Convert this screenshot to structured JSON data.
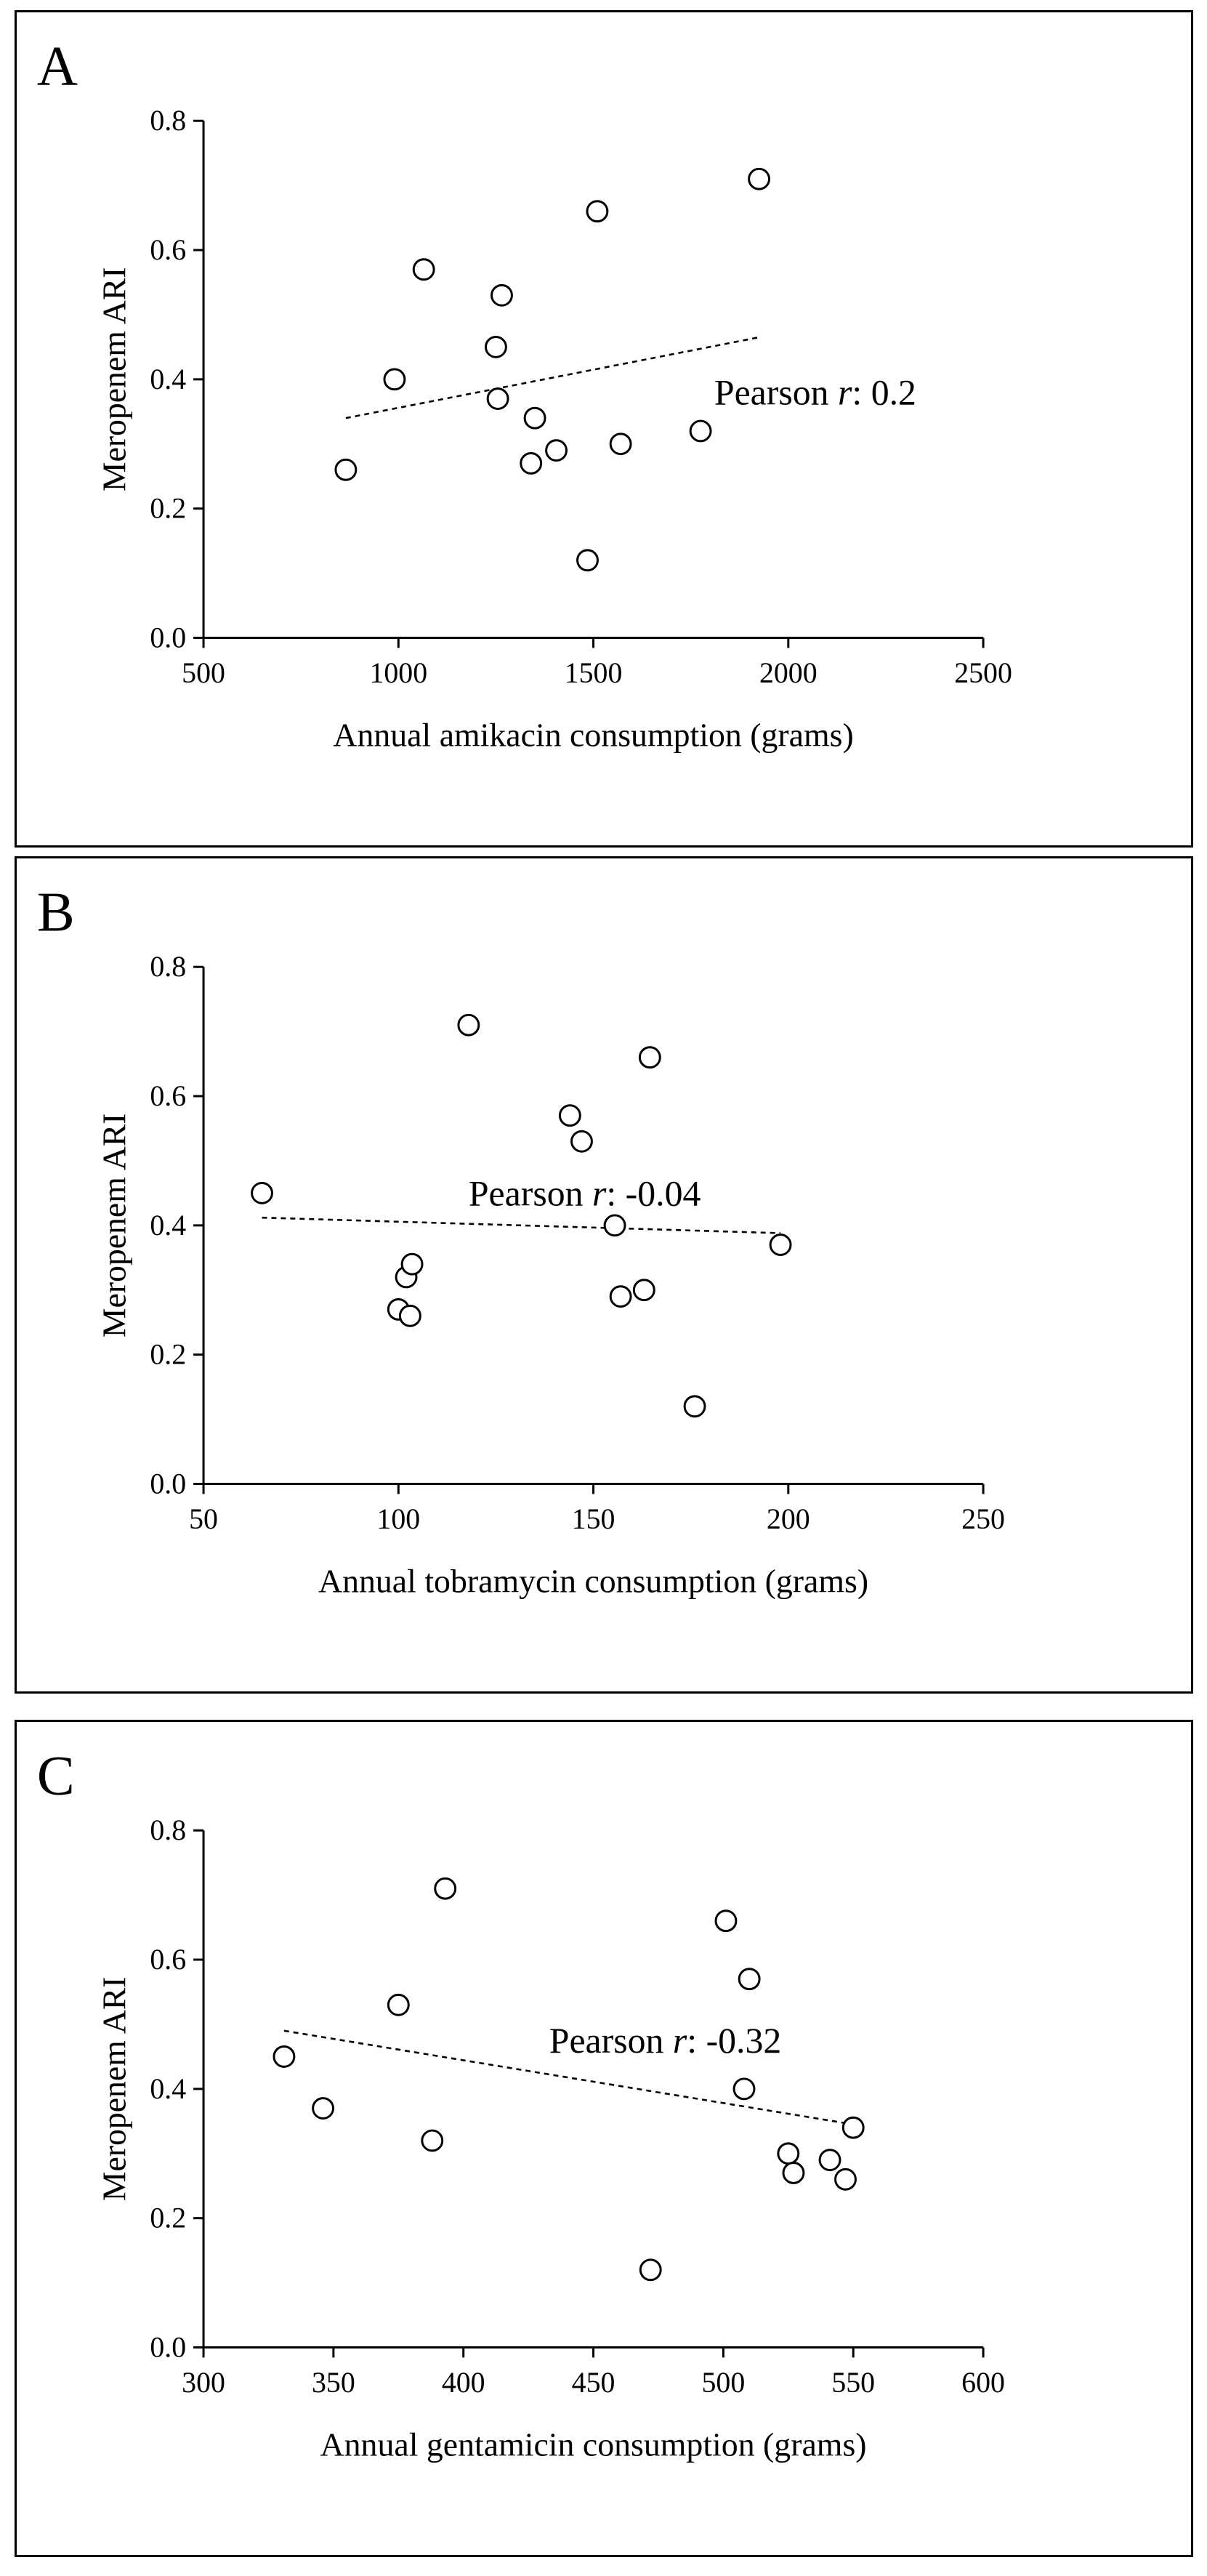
{
  "chart_data": [
    {
      "type": "scatter",
      "panel_label": "A",
      "title": "",
      "xlabel": "Annual amikacin consumption (grams)",
      "ylabel": "Meropenem ARI",
      "xlim": [
        500,
        2500
      ],
      "ylim": [
        0.0,
        0.8
      ],
      "xticks": [
        "500",
        "1000",
        "1500",
        "2000",
        "2500"
      ],
      "yticks": [
        "0.0",
        "0.2",
        "0.4",
        "0.6",
        "0.8"
      ],
      "points": [
        {
          "x": 865,
          "y": 0.26
        },
        {
          "x": 990,
          "y": 0.4
        },
        {
          "x": 1065,
          "y": 0.57
        },
        {
          "x": 1250,
          "y": 0.45
        },
        {
          "x": 1255,
          "y": 0.37
        },
        {
          "x": 1265,
          "y": 0.53
        },
        {
          "x": 1340,
          "y": 0.27
        },
        {
          "x": 1350,
          "y": 0.34
        },
        {
          "x": 1405,
          "y": 0.29
        },
        {
          "x": 1485,
          "y": 0.12
        },
        {
          "x": 1510,
          "y": 0.66
        },
        {
          "x": 1570,
          "y": 0.3
        },
        {
          "x": 1775,
          "y": 0.32
        },
        {
          "x": 1925,
          "y": 0.71
        }
      ],
      "trendline": {
        "x": [
          865,
          1925
        ],
        "y": [
          0.34,
          0.465
        ]
      },
      "annotation": {
        "prefix": "Pearson ",
        "italic": "r",
        "suffix": ": 0.2",
        "x": 1810,
        "y": 0.38
      }
    },
    {
      "type": "scatter",
      "panel_label": "B",
      "title": "",
      "xlabel": "Annual tobramycin consumption (grams)",
      "ylabel": "Meropenem ARI",
      "xlim": [
        50,
        250
      ],
      "ylim": [
        0.0,
        0.8
      ],
      "xticks": [
        "50",
        "100",
        "150",
        "200",
        "250"
      ],
      "yticks": [
        "0.0",
        "0.2",
        "0.4",
        "0.6",
        "0.8"
      ],
      "points": [
        {
          "x": 65,
          "y": 0.45
        },
        {
          "x": 100,
          "y": 0.27
        },
        {
          "x": 102,
          "y": 0.32
        },
        {
          "x": 103,
          "y": 0.26
        },
        {
          "x": 103.5,
          "y": 0.34
        },
        {
          "x": 118,
          "y": 0.71
        },
        {
          "x": 144,
          "y": 0.57
        },
        {
          "x": 147,
          "y": 0.53
        },
        {
          "x": 155.5,
          "y": 0.4
        },
        {
          "x": 157,
          "y": 0.29
        },
        {
          "x": 163,
          "y": 0.3
        },
        {
          "x": 164.5,
          "y": 0.66
        },
        {
          "x": 176,
          "y": 0.12
        },
        {
          "x": 198,
          "y": 0.37
        }
      ],
      "trendline": {
        "x": [
          65,
          198
        ],
        "y": [
          0.412,
          0.388
        ]
      },
      "annotation": {
        "prefix": "Pearson ",
        "italic": "r",
        "suffix": ": -0.04",
        "x": 118,
        "y": 0.45
      }
    },
    {
      "type": "scatter",
      "panel_label": "C",
      "title": "",
      "xlabel": "Annual gentamicin consumption (grams)",
      "ylabel": "Meropenem ARI",
      "xlim": [
        300,
        600
      ],
      "ylim": [
        0.0,
        0.8
      ],
      "xticks": [
        "300",
        "350",
        "400",
        "450",
        "500",
        "550",
        "600"
      ],
      "yticks": [
        "0.0",
        "0.2",
        "0.4",
        "0.6",
        "0.8"
      ],
      "points": [
        {
          "x": 331,
          "y": 0.45
        },
        {
          "x": 346,
          "y": 0.37
        },
        {
          "x": 375,
          "y": 0.53
        },
        {
          "x": 388,
          "y": 0.32
        },
        {
          "x": 393,
          "y": 0.71
        },
        {
          "x": 472,
          "y": 0.12
        },
        {
          "x": 501,
          "y": 0.66
        },
        {
          "x": 508,
          "y": 0.4
        },
        {
          "x": 510,
          "y": 0.57
        },
        {
          "x": 525,
          "y": 0.3
        },
        {
          "x": 527,
          "y": 0.27
        },
        {
          "x": 541,
          "y": 0.29
        },
        {
          "x": 547,
          "y": 0.26
        },
        {
          "x": 550,
          "y": 0.34
        }
      ],
      "trendline": {
        "x": [
          331,
          550
        ],
        "y": [
          0.49,
          0.345
        ]
      },
      "annotation": {
        "prefix": "Pearson ",
        "italic": "r",
        "suffix": ": -0.32",
        "x": 433,
        "y": 0.475
      }
    }
  ]
}
